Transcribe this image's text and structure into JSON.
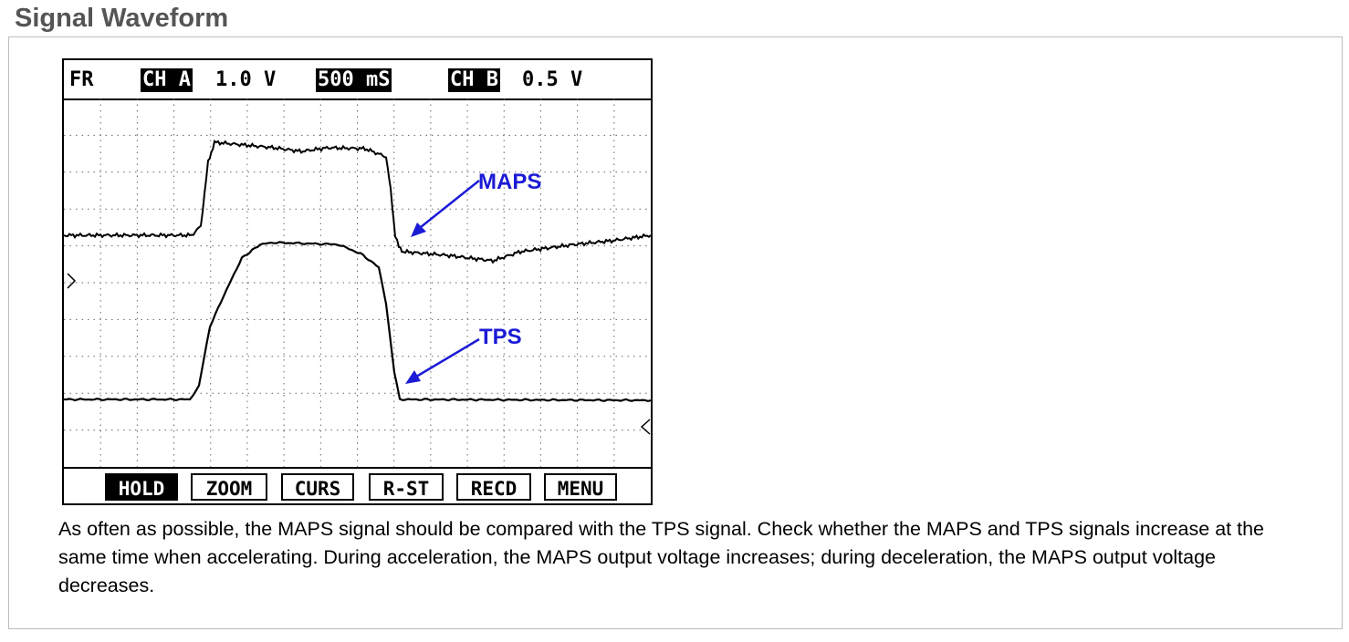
{
  "page": {
    "title": "Signal Waveform",
    "description": "As often as possible, the MAPS signal should be compared with the TPS signal. Check whether the MAPS and TPS signals increase at the same time when accelerating. During acceleration, the MAPS output voltage increases; during deceleration, the MAPS output voltage decreases."
  },
  "scope": {
    "mode": "FR",
    "channel_a": {
      "label": "CH A",
      "scale": "1.0 V"
    },
    "timebase": "500 mS",
    "channel_b": {
      "label": "CH B",
      "scale": "0.5 V"
    },
    "annotations": {
      "maps": "MAPS",
      "tps": "TPS"
    },
    "menu": [
      {
        "label": "HOLD",
        "active": true
      },
      {
        "label": "ZOOM",
        "active": false
      },
      {
        "label": "CURS",
        "active": false
      },
      {
        "label": "R-ST",
        "active": false
      },
      {
        "label": "RECD",
        "active": false
      },
      {
        "label": "MENU",
        "active": false
      }
    ],
    "colors": {
      "trace": "#000000",
      "annotation": "#1b1bd6",
      "grid": "#666666"
    }
  }
}
